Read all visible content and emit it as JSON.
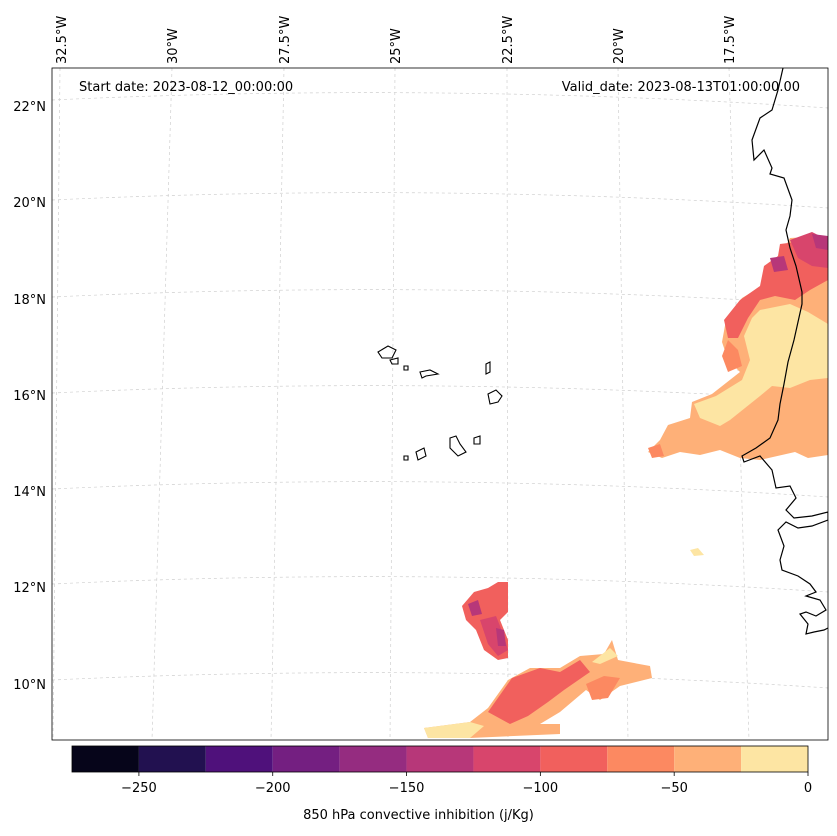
{
  "annotations": {
    "start_date": "Start date: 2023-08-12_00:00:00",
    "valid_date": "Valid_date: 2023-08-13T01:00:00.00"
  },
  "map": {
    "lon_labels": [
      "32.5°W",
      "30°W",
      "27.5°W",
      "25°W",
      "22.5°W",
      "20°W",
      "17.5°W"
    ],
    "lat_labels": [
      "22°N",
      "20°N",
      "18°N",
      "16°N",
      "14°N",
      "12°N",
      "10°N"
    ]
  },
  "colorbar": {
    "label": "850 hPa convective inhibition (j/Kg)",
    "tick_labels": [
      "−250",
      "−200",
      "−150",
      "−100",
      "−50",
      "0"
    ],
    "tick_values": [
      -250,
      -200,
      -150,
      -100,
      -50,
      0
    ],
    "range": [
      -275,
      0
    ],
    "levels": [
      -275,
      -250,
      -225,
      -200,
      -175,
      -150,
      -125,
      -100,
      -75,
      -50,
      -25,
      0
    ],
    "colors": [
      "#06051a",
      "#221150",
      "#4f117b",
      "#741f81",
      "#952c80",
      "#b73779",
      "#d8456c",
      "#f1605d",
      "#fc8961",
      "#feb078",
      "#fde5a3"
    ]
  },
  "chart_data": {
    "type": "heatmap",
    "title": "850 hPa convective inhibition (j/Kg)",
    "variable": "850 hPa convective inhibition",
    "units": "j/Kg",
    "value_range": [
      -275,
      0
    ],
    "lon_ticks": [
      "32.5°W",
      "30°W",
      "27.5°W",
      "25°W",
      "22.5°W",
      "20°W",
      "17.5°W"
    ],
    "lat_ticks": [
      "22°N",
      "20°N",
      "18°N",
      "16°N",
      "14°N",
      "12°N",
      "10°N"
    ],
    "start_date": "2023-08-12_00:00:00",
    "valid_date": "2023-08-13T01:00:00.00"
  }
}
